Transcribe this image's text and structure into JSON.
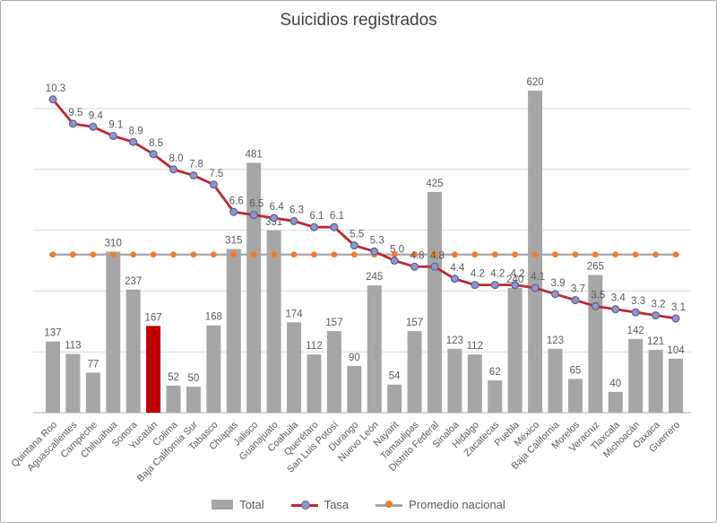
{
  "chart_data": {
    "type": "bar+line combo",
    "title": "Suicidios registrados",
    "categories": [
      "Quintana Roo",
      "Aguascalientes",
      "Campeche",
      "Chihuahua",
      "Sonora",
      "Yucatán",
      "Colima",
      "Baja California Sur",
      "Tabasco",
      "Chiapas",
      "Jalisco",
      "Guanajuato",
      "Coahuila",
      "Querétaro",
      "San Luis Potosí",
      "Durango",
      "Nuevo León",
      "Nayarit",
      "Tamaulipas",
      "Distrito Federal",
      "Sinaloa",
      "Hidalgo",
      "Zacatecas",
      "Puebla",
      "México",
      "Baja California",
      "Morelos",
      "Veracruz",
      "Tlaxcala",
      "Michoacán",
      "Oaxaca",
      "Guerrero"
    ],
    "series": [
      {
        "name": "Total",
        "type": "bar",
        "values": [
          137,
          113,
          77,
          310,
          237,
          167,
          52,
          50,
          168,
          315,
          481,
          351,
          174,
          112,
          157,
          90,
          245,
          54,
          157,
          425,
          123,
          112,
          62,
          240,
          620,
          123,
          65,
          265,
          40,
          142,
          121,
          104
        ],
        "highlight_category": "Yucatán"
      },
      {
        "name": "Tasa",
        "type": "line",
        "values": [
          10.3,
          9.5,
          9.4,
          9.1,
          8.9,
          8.5,
          8.0,
          7.8,
          7.5,
          6.6,
          6.5,
          6.4,
          6.3,
          6.1,
          6.1,
          5.5,
          5.3,
          5.0,
          4.8,
          4.8,
          4.4,
          4.2,
          4.2,
          4.2,
          4.1,
          3.9,
          3.7,
          3.5,
          3.4,
          3.3,
          3.2,
          3.1
        ]
      },
      {
        "name": "Promedio nacional",
        "type": "reference-line",
        "value": 5.2,
        "estimated": true
      }
    ],
    "axes": {
      "x_labels_rotation_deg": -45,
      "rate_gridline_values": [
        2,
        4,
        6,
        8,
        10
      ],
      "rate_axis_labels_visible": false,
      "bar_axis_labels_visible": false,
      "data_labels_visible": true
    },
    "legend_position": "bottom",
    "colors": {
      "bar": "#A6A6A6",
      "bar_highlight": "#C00000",
      "tasa_line": "#BE2830",
      "tasa_marker_fill": "#8F97C4",
      "tasa_marker_stroke": "#62619C",
      "promedio_line": "#A6A6A6",
      "promedio_marker": "#ED7D31",
      "data_label": "#595959",
      "axis_label": "#595959",
      "gridline": "#D9D9D9",
      "axis_line": "#BFBFBF",
      "title": "#404040"
    }
  }
}
